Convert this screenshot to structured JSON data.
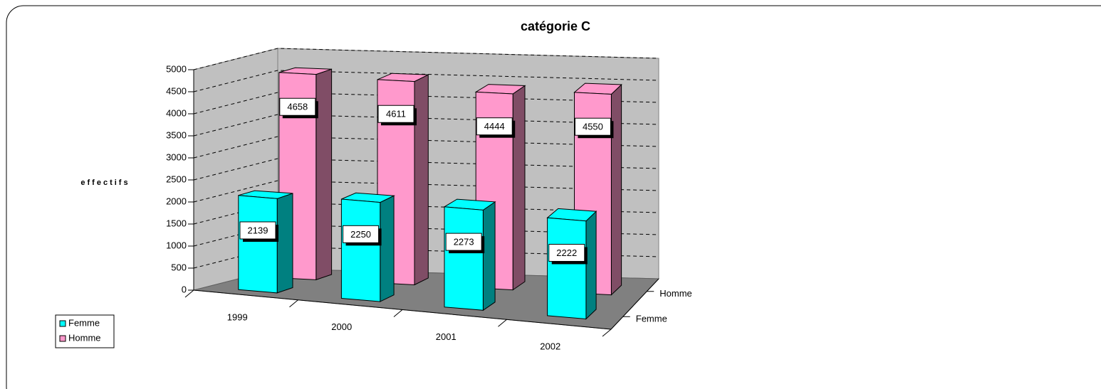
{
  "chart_data": {
    "type": "bar3d",
    "title": "catégorie C",
    "y_label": "effectifs",
    "categories": [
      "1999",
      "2000",
      "2001",
      "2002"
    ],
    "series": [
      {
        "name": "Femme",
        "color": "#00ffff",
        "values": [
          2139,
          2250,
          2273,
          2222
        ]
      },
      {
        "name": "Homme",
        "color": "#ff99cc",
        "values": [
          4658,
          4611,
          4444,
          4550
        ]
      }
    ],
    "ylim": [
      0,
      5000
    ],
    "yticks": [
      0,
      500,
      1000,
      1500,
      2000,
      2500,
      3000,
      3500,
      4000,
      4500,
      5000
    ],
    "grid": true,
    "legend": "left"
  }
}
